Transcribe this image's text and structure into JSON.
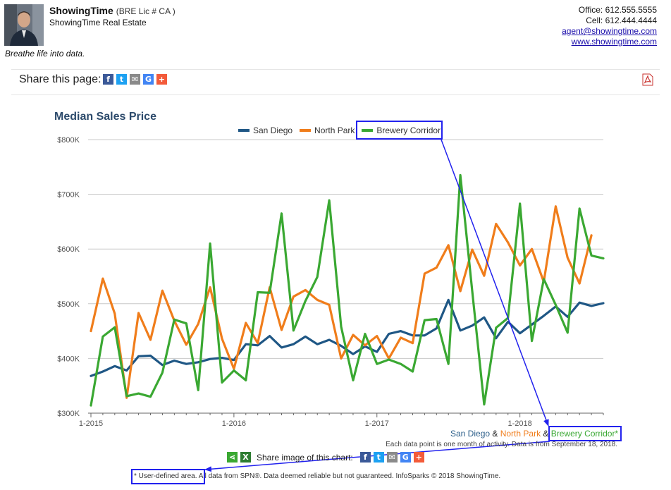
{
  "agent": {
    "name": "ShowingTime",
    "license": "(BRE Lic # CA )",
    "company": "ShowingTime Real Estate",
    "tagline": "Breathe life into data.",
    "office": "Office: 612.555.5555",
    "cell": "Cell: 612.444.4444",
    "email": "agent@showingtime.com",
    "website": "www.showingtime.com"
  },
  "share_page": {
    "label": "Share this page:",
    "icons": [
      "facebook-icon",
      "twitter-icon",
      "email-icon",
      "google-icon",
      "plus-icon"
    ]
  },
  "pdf_icon": "pdf-icon",
  "chart_data": {
    "type": "line",
    "title": "Median Sales Price",
    "xlabel": "",
    "ylabel": "",
    "ylim": [
      300000,
      800000
    ],
    "y_ticks": [
      "$300K",
      "$400K",
      "$500K",
      "$600K",
      "$700K",
      "$800K"
    ],
    "x_ticks": [
      "1-2015",
      "1-2016",
      "1-2017",
      "1-2018"
    ],
    "grid": true,
    "legend": "top-center",
    "x": [
      "2015-01",
      "2015-02",
      "2015-03",
      "2015-04",
      "2015-05",
      "2015-06",
      "2015-07",
      "2015-08",
      "2015-09",
      "2015-10",
      "2015-11",
      "2015-12",
      "2016-01",
      "2016-02",
      "2016-03",
      "2016-04",
      "2016-05",
      "2016-06",
      "2016-07",
      "2016-08",
      "2016-09",
      "2016-10",
      "2016-11",
      "2016-12",
      "2017-01",
      "2017-02",
      "2017-03",
      "2017-04",
      "2017-05",
      "2017-06",
      "2017-07",
      "2017-08",
      "2017-09",
      "2017-10",
      "2017-11",
      "2017-12",
      "2018-01",
      "2018-02",
      "2018-03",
      "2018-04",
      "2018-05",
      "2018-06",
      "2018-07",
      "2018-08"
    ],
    "series": [
      {
        "name": "San Diego",
        "color": "#1f5785",
        "values": [
          368000,
          376000,
          386000,
          378000,
          404000,
          405000,
          388000,
          396000,
          390000,
          393000,
          399000,
          401000,
          397000,
          426000,
          424000,
          441000,
          420000,
          426000,
          440000,
          426000,
          434000,
          423000,
          408000,
          422000,
          412000,
          445000,
          450000,
          442000,
          442000,
          455000,
          507000,
          451000,
          460000,
          475000,
          437000,
          467000,
          446000,
          462000,
          478000,
          495000,
          476000,
          502000,
          496000,
          501000
        ]
      },
      {
        "name": "North Park",
        "color": "#f07d1b",
        "values": [
          450000,
          546000,
          482000,
          328000,
          483000,
          434000,
          524000,
          469000,
          425000,
          463000,
          530000,
          436000,
          381000,
          465000,
          428000,
          530000,
          452000,
          513000,
          525000,
          507000,
          498000,
          400000,
          443000,
          424000,
          441000,
          400000,
          438000,
          428000,
          555000,
          566000,
          607000,
          523000,
          599000,
          551000,
          646000,
          612000,
          570000,
          600000,
          540000,
          678000,
          584000,
          537000,
          625000,
          null
        ]
      },
      {
        "name": "Brewery Corridor",
        "color": "#3aa832",
        "values": [
          314000,
          440000,
          457000,
          331000,
          336000,
          330000,
          374000,
          471000,
          464000,
          342000,
          610000,
          356000,
          378000,
          360000,
          521000,
          520000,
          665000,
          451000,
          505000,
          549000,
          689000,
          458000,
          360000,
          445000,
          390000,
          398000,
          390000,
          376000,
          470000,
          472000,
          390000,
          735000,
          523000,
          316000,
          456000,
          474000,
          683000,
          432000,
          545000,
          498000,
          447000,
          674000,
          588000,
          583000
        ]
      }
    ]
  },
  "credit": {
    "san_diego": "San Diego",
    "amp1": " & ",
    "north_park": "North Park",
    "amp2": " & ",
    "brewery": "Brewery Corridor*"
  },
  "note": "Each data point is one month of activity. Data is from September 18, 2018.",
  "share_image": {
    "label": "Share image of this chart:",
    "icons": [
      "share-icon",
      "excel-icon",
      "facebook-icon",
      "twitter-icon",
      "email-icon",
      "google-icon",
      "plus-icon"
    ]
  },
  "footer": "* User-defined area. All data from SPN®. Data deemed reliable but not guaranteed. InfoSparks © 2018 ShowingTime.",
  "colors": {
    "annotation": "#2222ee",
    "title": "#2c4a6b"
  }
}
